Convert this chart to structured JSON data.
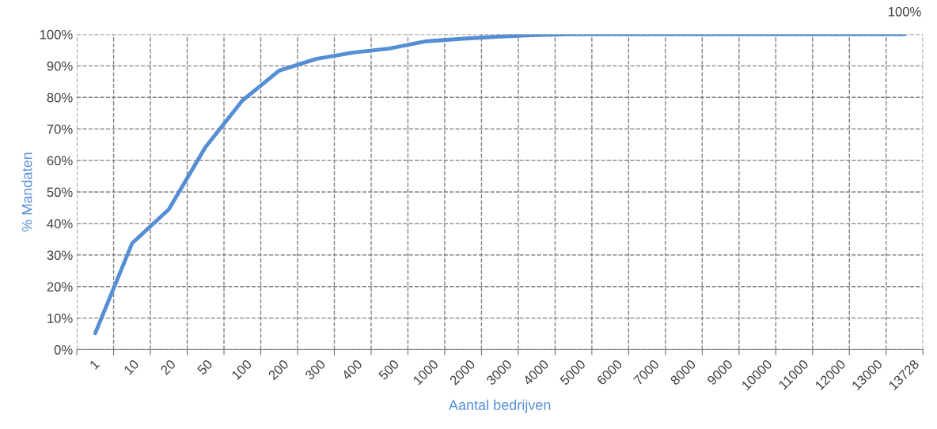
{
  "chart_data": {
    "type": "line",
    "xlabel": "Aantal bedrijven",
    "ylabel": "% Mandaten",
    "categories": [
      "1",
      "10",
      "20",
      "50",
      "100",
      "200",
      "300",
      "400",
      "500",
      "1000",
      "2000",
      "3000",
      "4000",
      "5000",
      "6000",
      "7000",
      "8000",
      "9000",
      "10000",
      "11000",
      "12000",
      "13000",
      "13728"
    ],
    "series": [
      {
        "color": "#558ed5",
        "values": [
          5.2,
          33.7,
          44.5,
          64.3,
          79,
          88.5,
          92.2,
          94.2,
          95.5,
          97.8,
          98.6,
          99.3,
          99.8,
          100,
          100,
          100,
          100,
          100,
          100,
          100,
          100,
          100,
          100
        ],
        "value_labels": [
          null,
          null,
          null,
          null,
          null,
          null,
          null,
          null,
          null,
          null,
          null,
          null,
          null,
          null,
          null,
          null,
          null,
          null,
          null,
          null,
          null,
          null,
          "100%"
        ]
      }
    ],
    "ylim": [
      0,
      100
    ],
    "yticks": [
      {
        "value": 0,
        "label": "0%"
      },
      {
        "value": 10,
        "label": "10%"
      },
      {
        "value": 20,
        "label": "20%"
      },
      {
        "value": 30,
        "label": "30%"
      },
      {
        "value": 40,
        "label": "40%"
      },
      {
        "value": 50,
        "label": "50%"
      },
      {
        "value": 60,
        "label": "60%"
      },
      {
        "value": 70,
        "label": "70%"
      },
      {
        "value": 80,
        "label": "80%"
      },
      {
        "value": 90,
        "label": "90%"
      },
      {
        "value": 100,
        "label": "100%"
      }
    ],
    "grid": true,
    "legend": false,
    "marker": "none",
    "line_style": "solid"
  }
}
